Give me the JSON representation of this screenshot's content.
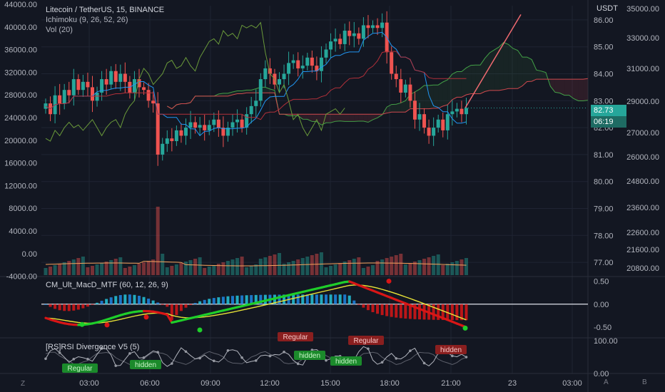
{
  "legend": {
    "title": "Litecoin / TetherUS, 15, BINANCE",
    "ichimoku": "Ichimoku (9, 26, 52, 26)",
    "vol": "Vol (20)",
    "macd": "CM_Ult_MacD_MTF (60, 12, 26, 9)",
    "rsi": "[RS]RSI Divergence V5 (5)"
  },
  "currency": "USDT",
  "last_price": "82.73",
  "countdown": "06:19",
  "scale_label_a": "A",
  "scale_label_b": "B",
  "corner_z": "Z",
  "colors": {
    "background": "#131722",
    "up": "#26a69a",
    "down": "#ef5350",
    "grid": "#1f2433",
    "text": "#b2b5be",
    "kumo_red": "#d0494e",
    "kumo_green": "#43a047",
    "tenkan": "#2196f3",
    "macd_green": "#1fce2a",
    "macd_red": "#d91616",
    "signal": "#e8e337"
  },
  "chart_data": [
    {
      "type": "candlestick",
      "title": "Litecoin / TetherUS, 15, BINANCE",
      "x_ticks": [
        "03:00",
        "06:00",
        "09:00",
        "12:00",
        "15:00",
        "18:00",
        "21:00",
        "23",
        "03:00"
      ],
      "y_ticks_price": [
        "86.00",
        "85.00",
        "84.00",
        "83.00",
        "82.00",
        "81.00",
        "80.00",
        "79.00",
        "78.00",
        "77.00"
      ],
      "y_ticks_left": [
        "44000.00",
        "40000.00",
        "36000.00",
        "32000.00",
        "28000.00",
        "24000.00",
        "20000.00",
        "16000.00",
        "12000.00",
        "8000.00",
        "4000.00",
        "0.00",
        "-4000.00"
      ],
      "y_ticks_right": [
        "35000.00",
        "33000.00",
        "31000.00",
        "29000.00",
        "27000.00",
        "26000.00",
        "24800.00",
        "23600.00",
        "22600.00",
        "21600.00",
        "20800.00"
      ],
      "ylim": [
        76.5,
        86.5
      ],
      "close_series": [
        82.9,
        82.5,
        83.2,
        82.9,
        83.4,
        83.2,
        83.8,
        83.4,
        83.7,
        83.5,
        83.0,
        83.3,
        83.8,
        83.6,
        84.1,
        83.7,
        84.0,
        83.7,
        83.3,
        83.8,
        83.5,
        83.4,
        83.0,
        82.9,
        81.0,
        81.4,
        81.6,
        81.5,
        81.9,
        81.7,
        82.0,
        82.2,
        82.0,
        82.1,
        81.9,
        82.1,
        82.3,
        82.0,
        81.7,
        82.0,
        82.2,
        82.3,
        82.0,
        82.5,
        82.8,
        83.0,
        83.8,
        84.2,
        84.0,
        83.6,
        83.8,
        84.0,
        84.4,
        84.5,
        84.2,
        84.3,
        84.6,
        84.3,
        84.1,
        84.6,
        84.9,
        85.2,
        85.3,
        85.1,
        85.6,
        85.4,
        85.5,
        85.3,
        85.8,
        85.7,
        85.8,
        85.7,
        85.9,
        84.8,
        84.0,
        83.8,
        83.3,
        83.6,
        83.0,
        82.3,
        82.5,
        82.0,
        81.7,
        82.0,
        82.3,
        81.9,
        82.5,
        82.6,
        82.7,
        82.5,
        82.73
      ],
      "last_price": 82.73,
      "ichimoku_params": [
        9,
        26,
        52,
        26
      ]
    },
    {
      "type": "bar",
      "title": "Vol (20)",
      "spike_value_approx": 9000
    },
    {
      "type": "line",
      "title": "CM_Ult_MacD_MTF (60, 12, 26, 9)",
      "y_ticks": [
        "0.50",
        "0.00",
        "-0.50"
      ],
      "ylim": [
        -0.7,
        0.6
      ]
    },
    {
      "type": "line",
      "title": "[RS]RSI Divergence V5 (5)",
      "y_ticks": [
        "100.00",
        "0.00"
      ],
      "ylim": [
        0,
        100
      ],
      "annotations": [
        {
          "label": "Regular",
          "kind": "bullish"
        },
        {
          "label": "hidden",
          "kind": "bullish"
        },
        {
          "label": "Regular",
          "kind": "bearish"
        },
        {
          "label": "hidden",
          "kind": "bullish"
        },
        {
          "label": "hidden",
          "kind": "bullish"
        },
        {
          "label": "Regular",
          "kind": "bearish"
        },
        {
          "label": "hidden",
          "kind": "bearish"
        }
      ]
    }
  ]
}
